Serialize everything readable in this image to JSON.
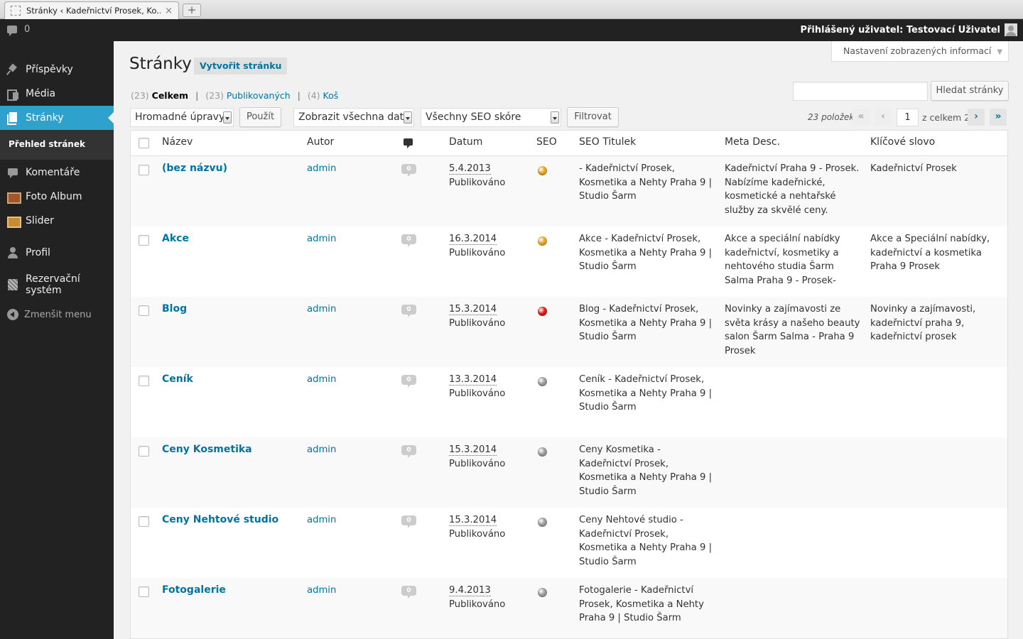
{
  "browser": {
    "tab_title": "Stránky ‹ Kadeřnictví Prosek, Ko...",
    "tab_close": "×",
    "new_tab": "+"
  },
  "admin_bar": {
    "comment_count": "0",
    "user_text": "Přihlášený uživatel: Testovací Uživatel"
  },
  "sidebar": {
    "items": [
      {
        "label": "Příspěvky",
        "icon": "pin-icon"
      },
      {
        "label": "Média",
        "icon": "media-icon"
      },
      {
        "label": "Stránky",
        "icon": "pages-icon",
        "active": true
      },
      {
        "label": "Komentáře",
        "icon": "comments-icon"
      },
      {
        "label": "Foto Album",
        "icon": "photo-album-icon"
      },
      {
        "label": "Slider",
        "icon": "slider-icon"
      },
      {
        "label": "Profil",
        "icon": "profile-icon"
      },
      {
        "label": "Rezervační systém",
        "icon": "reservation-icon"
      }
    ],
    "submenu": "Přehled stránek",
    "collapse": "Zmenšit menu"
  },
  "screen_options": "Nastavení zobrazených informací",
  "page": {
    "title": "Stránky",
    "add_new": "Vytvořit stránku"
  },
  "views": {
    "all_count": "(23)",
    "all_label": "Celkem",
    "published_count": "(23)",
    "published_label": "Publikovaných",
    "trash_count": "(4)",
    "trash_label": "Koš",
    "separator": "|"
  },
  "search": {
    "value": "",
    "button": "Hledat stránky"
  },
  "toolbar": {
    "bulk_actions": "Hromadné úpravy",
    "apply": "Použít",
    "dates": "Zobrazit všechna data",
    "seo_filter": "Všechny SEO skóre",
    "filter": "Filtrovat"
  },
  "pagination": {
    "items": "23 položek",
    "first": "«",
    "prev": "‹",
    "current": "1",
    "of_total": "z celkem 2",
    "next": "›",
    "last": "»"
  },
  "table": {
    "columns": {
      "title": "Název",
      "author": "Autor",
      "date": "Datum",
      "seo": "SEO",
      "seo_title": "SEO Titulek",
      "meta_desc": "Meta Desc.",
      "keyword": "Klíčové slovo"
    },
    "rows": [
      {
        "title": "(bez názvu)",
        "author": "admin",
        "comments": "0",
        "date": "5.4.2013",
        "status": "Publikováno",
        "seo_color": "#e4a421",
        "seo_title": "- Kadeřnictví Prosek, Kosmetika a Nehty Praha 9 | Studio Šarm",
        "meta_desc": "Kadeřnictví Praha 9 - Prosek. Nabízíme kadeřnické, kosmetické a nehtařské služby za skvělé ceny.",
        "keyword": "Kadeřnictví Prosek"
      },
      {
        "title": "Akce",
        "author": "admin",
        "comments": "0",
        "date": "16.3.2014",
        "status": "Publikováno",
        "seo_color": "#e4a421",
        "seo_title": "Akce - Kadeřnictví Prosek, Kosmetika a Nehty Praha 9 | Studio Šarm",
        "meta_desc": "Akce a speciální nabídky kadeřnictví, kosmetiky a nehtového studia Šarm Salma Praha 9 - Prosek-",
        "keyword": "Akce a Speciální nabídky, kadeřnictví a kosmetika Praha 9 Prosek"
      },
      {
        "title": "Blog",
        "author": "admin",
        "comments": "0",
        "date": "15.3.2014",
        "status": "Publikováno",
        "seo_color": "#dc1a1a",
        "seo_title": "Blog - Kadeřnictví Prosek, Kosmetika a Nehty Praha 9 | Studio Šarm",
        "meta_desc": "Novinky a zajímavosti ze světa krásy a našeho beauty salon Šarm Salma - Praha 9 Prosek",
        "keyword": "Novinky a zajímavosti, kadeřnictví praha 9, kadeřnictví prosek"
      },
      {
        "title": "Ceník",
        "author": "admin",
        "comments": "0",
        "date": "13.3.2014",
        "status": "Publikováno",
        "seo_color": "#9b9b9b",
        "seo_title": "Ceník - Kadeřnictví Prosek, Kosmetika a Nehty Praha 9 | Studio Šarm",
        "meta_desc": "",
        "keyword": ""
      },
      {
        "title": "Ceny Kosmetika",
        "author": "admin",
        "comments": "0",
        "date": "15.3.2014",
        "status": "Publikováno",
        "seo_color": "#9b9b9b",
        "seo_title": "Ceny Kosmetika - Kadeřnictví Prosek, Kosmetika a Nehty Praha 9 | Studio Šarm",
        "meta_desc": "",
        "keyword": ""
      },
      {
        "title": "Ceny Nehtové studio",
        "author": "admin",
        "comments": "0",
        "date": "15.3.2014",
        "status": "Publikováno",
        "seo_color": "#9b9b9b",
        "seo_title": "Ceny Nehtové studio - Kadeřnictví Prosek, Kosmetika a Nehty Praha 9 | Studio Šarm",
        "meta_desc": "",
        "keyword": ""
      },
      {
        "title": "Fotogalerie",
        "author": "admin",
        "comments": "0",
        "date": "9.4.2013",
        "status": "Publikováno",
        "seo_color": "#9b9b9b",
        "seo_title": "Fotogalerie - Kadeřnictví Prosek, Kosmetika a Nehty Praha 9 | Studio Šarm",
        "meta_desc": "",
        "keyword": ""
      }
    ]
  }
}
